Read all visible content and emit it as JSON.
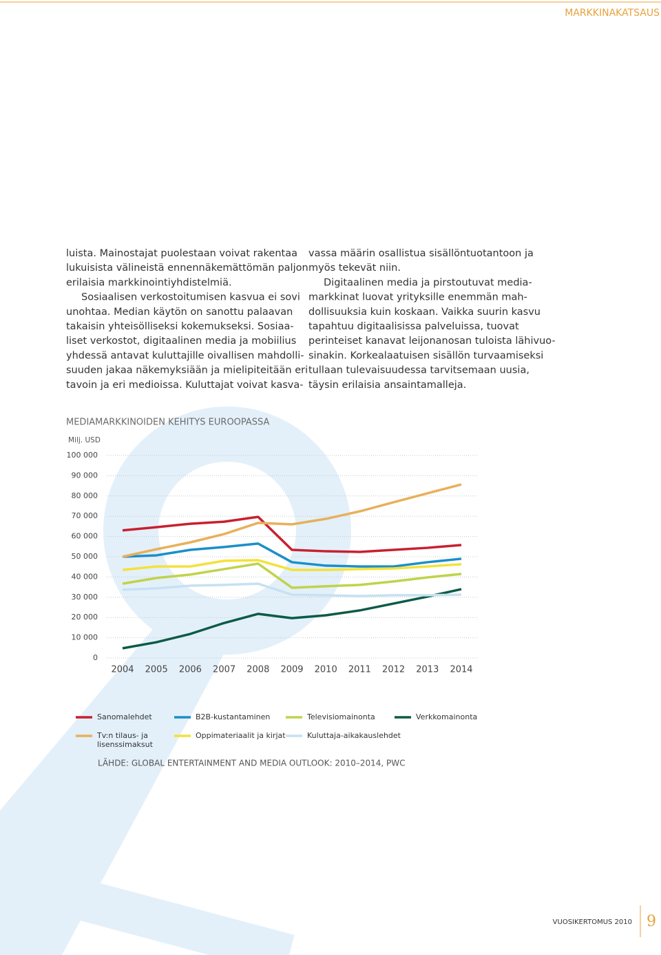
{
  "header": {
    "section": "MARKKINAKATSAUS"
  },
  "columns": [
    {
      "paragraphs": [
        {
          "lines": [
            "luista. Mainostajat puolestaan voivat rakentaa",
            "lukuisista välineistä ennennäkemättömän paljon",
            "erilaisia markkinointiyhdistelmiä."
          ]
        },
        {
          "lines": [
            "Sosiaalisen verkostoitumisen kasvua ei sovi",
            "unohtaa. Median käytön on sanottu palaavan",
            "takaisin yhteisölliseksi kokemukseksi. Sosiaa-",
            "liset verkostot, digitaalinen media ja mobiilius",
            "yhdessä antavat kuluttajille oivallisen mahdolli-",
            "suuden jakaa näkemyksiään ja mielipiteitään eri",
            "tavoin ja eri medioissa. Kuluttajat voivat kasva-"
          ]
        }
      ]
    },
    {
      "paragraphs": [
        {
          "lines": [
            "vassa määrin osallistua sisällöntuotantoon ja",
            "myös tekevät niin."
          ]
        },
        {
          "lines": [
            "Digitaalinen media ja pirstoutuvat media-",
            "markkinat luovat yrityksille enemmän mah-",
            "dollisuuksia kuin koskaan. Vaikka suurin kasvu",
            "tapahtuu digitaalisissa palveluissa, tuovat",
            "perinteiset kanavat leijonanosan tuloista lähivuo-",
            "sinakin. Korkealaatuisen sisällön turvaamiseksi",
            "tullaan tulevaisuudessa tarvitsemaan uusia,",
            "täysin erilaisia ansaintamalleja."
          ]
        }
      ]
    }
  ],
  "chart_data": {
    "type": "line",
    "title": "MEDIAMARKKINOIDEN KEHITYS EUROOPASSA",
    "y_label": "Milj. USD",
    "categories": [
      "2004",
      "2005",
      "2006",
      "2007",
      "2008",
      "2009",
      "2010",
      "2011",
      "2012",
      "2013",
      "2014"
    ],
    "ylim": [
      0,
      100000
    ],
    "yticks": [
      0,
      {
        "value": 10000,
        "label": "10 000"
      },
      {
        "value": 20000,
        "label": "20 000"
      },
      {
        "value": 30000,
        "label": "30 000"
      },
      {
        "value": 40000,
        "label": "40 000"
      },
      {
        "value": 50000,
        "label": "50 000"
      },
      {
        "value": 60000,
        "label": "60 000"
      },
      {
        "value": 70000,
        "label": "70 000"
      },
      {
        "value": 80000,
        "label": "80 000"
      },
      {
        "value": 90000,
        "label": "90 000"
      },
      {
        "value": 100000,
        "label": "100 000"
      }
    ],
    "grid": true,
    "series": [
      {
        "name": "Sanomalehdet",
        "color": "#c8202f",
        "values": [
          63000,
          64600,
          66300,
          67300,
          69700,
          53400,
          52700,
          52400,
          53400,
          54400,
          55800
        ]
      },
      {
        "name": "B2B-kustantaminen",
        "color": "#1a8fc9",
        "values": [
          50000,
          50700,
          53400,
          54800,
          56500,
          47300,
          45600,
          45200,
          45200,
          47300,
          49000
        ]
      },
      {
        "name": "Televisiomainonta",
        "color": "#bfd34a",
        "values": [
          36700,
          39500,
          41200,
          43900,
          46600,
          34700,
          35400,
          36100,
          37800,
          39800,
          41500
        ]
      },
      {
        "name": "Verkkomainonta",
        "color": "#0d5b45",
        "values": [
          4800,
          7800,
          11900,
          17300,
          21800,
          19700,
          21100,
          23500,
          26900,
          30300,
          34000
        ]
      },
      {
        "name": "Tv:n tilaus- ja lisenssimaksut",
        "color": "#e8b05a",
        "values": [
          50000,
          53700,
          57100,
          61200,
          66700,
          66000,
          68700,
          72400,
          76900,
          81300,
          85700
        ]
      },
      {
        "name": "Oppimateriaalit ja kirjat",
        "color": "#f3e23a",
        "values": [
          43500,
          45200,
          45200,
          48000,
          48300,
          43500,
          43500,
          43900,
          44200,
          45200,
          46300
        ]
      },
      {
        "name": "Kuluttaja-aikakauslehdet",
        "color": "#c6e1f2",
        "values": [
          33700,
          34400,
          35700,
          36100,
          36700,
          31300,
          31000,
          30600,
          31000,
          31000,
          31300
        ]
      }
    ],
    "source": "LÄHDE: GLOBAL ENTERTAINMENT AND MEDIA OUTLOOK: 2010–2014, PWC"
  },
  "footer": {
    "publication": "VUOSIKERTOMUS 2010",
    "page": "9"
  }
}
